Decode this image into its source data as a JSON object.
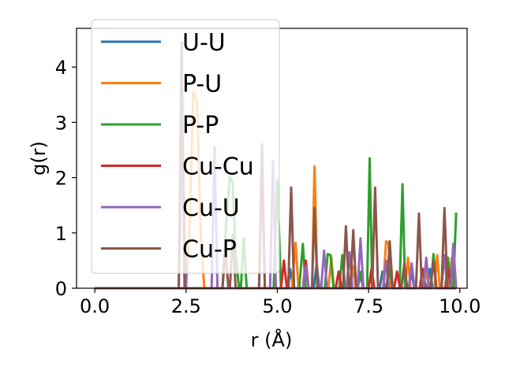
{
  "chart_data": {
    "type": "line",
    "xlabel": "r (Å)",
    "ylabel": "g(r)",
    "xlim": [
      -0.5,
      10.2
    ],
    "ylim": [
      0,
      4.7
    ],
    "xticks": [
      0.0,
      2.5,
      5.0,
      7.5,
      10.0
    ],
    "xtick_labels": [
      "0.0",
      "2.5",
      "5.0",
      "7.5",
      "10.0"
    ],
    "yticks": [
      0,
      1,
      2,
      3,
      4
    ],
    "ytick_labels": [
      "0",
      "1",
      "2",
      "3",
      "4"
    ],
    "grid": false,
    "legend_position": "upper-left",
    "series": [
      {
        "name": "U-U",
        "color": "#1f77b4",
        "points": [
          [
            0,
            0
          ],
          [
            5.3,
            0
          ],
          [
            5.35,
            0.35
          ],
          [
            5.45,
            0
          ],
          [
            6.0,
            0
          ],
          [
            6.08,
            0.45
          ],
          [
            6.15,
            0
          ],
          [
            6.6,
            0
          ],
          [
            6.68,
            0.3
          ],
          [
            6.75,
            0
          ],
          [
            7.2,
            0
          ],
          [
            7.28,
            0.25
          ],
          [
            7.35,
            0
          ],
          [
            7.8,
            0
          ],
          [
            7.88,
            0.3
          ],
          [
            7.95,
            0
          ],
          [
            8.6,
            0
          ],
          [
            8.68,
            0.3
          ],
          [
            8.75,
            0
          ],
          [
            9.1,
            0
          ],
          [
            9.18,
            0.35
          ],
          [
            9.25,
            0
          ],
          [
            9.6,
            0
          ],
          [
            9.68,
            0.4
          ],
          [
            9.75,
            0
          ],
          [
            9.9,
            0
          ]
        ]
      },
      {
        "name": "P-U",
        "color": "#ff7f0e",
        "points": [
          [
            0,
            0
          ],
          [
            2.5,
            0
          ],
          [
            2.6,
            1.2
          ],
          [
            2.7,
            3.55
          ],
          [
            2.8,
            3.4
          ],
          [
            2.9,
            1.0
          ],
          [
            3.0,
            0
          ],
          [
            5.4,
            0
          ],
          [
            5.5,
            0.82
          ],
          [
            5.58,
            0
          ],
          [
            5.95,
            0
          ],
          [
            6.02,
            2.2
          ],
          [
            6.1,
            0
          ],
          [
            6.4,
            0
          ],
          [
            6.48,
            0.55
          ],
          [
            6.55,
            0
          ],
          [
            7.0,
            0
          ],
          [
            7.08,
            0.4
          ],
          [
            7.15,
            0
          ],
          [
            7.5,
            0
          ],
          [
            7.58,
            0.3
          ],
          [
            7.65,
            0
          ],
          [
            7.9,
            0
          ],
          [
            7.98,
            0.85
          ],
          [
            8.05,
            0.8
          ],
          [
            8.12,
            0
          ],
          [
            8.5,
            0
          ],
          [
            8.58,
            0.55
          ],
          [
            8.65,
            0
          ],
          [
            9.0,
            0
          ],
          [
            9.08,
            0.35
          ],
          [
            9.15,
            0
          ],
          [
            9.3,
            0
          ],
          [
            9.38,
            0.6
          ],
          [
            9.45,
            0
          ],
          [
            9.7,
            0
          ],
          [
            9.78,
            0.55
          ],
          [
            9.85,
            0
          ]
        ]
      },
      {
        "name": "P-P",
        "color": "#2ca02c",
        "points": [
          [
            0,
            0
          ],
          [
            3.5,
            0
          ],
          [
            3.6,
            1.2
          ],
          [
            3.7,
            2.02
          ],
          [
            3.78,
            1.9
          ],
          [
            3.86,
            0.6
          ],
          [
            3.95,
            0
          ],
          [
            4.0,
            0
          ],
          [
            4.08,
            0.9
          ],
          [
            4.16,
            0
          ],
          [
            4.9,
            0
          ],
          [
            5.0,
            1.95
          ],
          [
            5.1,
            0
          ],
          [
            5.6,
            0
          ],
          [
            5.7,
            0.8
          ],
          [
            5.78,
            0
          ],
          [
            6.3,
            0
          ],
          [
            6.38,
            0.62
          ],
          [
            6.46,
            0.6
          ],
          [
            6.54,
            0
          ],
          [
            6.7,
            0
          ],
          [
            6.78,
            0.6
          ],
          [
            6.86,
            0
          ],
          [
            7.2,
            0
          ],
          [
            7.28,
            0.3
          ],
          [
            7.36,
            0
          ],
          [
            7.46,
            0
          ],
          [
            7.53,
            2.35
          ],
          [
            7.6,
            0
          ],
          [
            8.0,
            0
          ],
          [
            8.08,
            0.35
          ],
          [
            8.16,
            0
          ],
          [
            8.35,
            0
          ],
          [
            8.43,
            1.88
          ],
          [
            8.5,
            0
          ],
          [
            8.9,
            0
          ],
          [
            8.98,
            0.35
          ],
          [
            9.06,
            0
          ],
          [
            9.2,
            0
          ],
          [
            9.28,
            0.62
          ],
          [
            9.36,
            0
          ],
          [
            9.6,
            0
          ],
          [
            9.68,
            0.55
          ],
          [
            9.76,
            0
          ],
          [
            9.82,
            0
          ],
          [
            9.9,
            1.37
          ]
        ]
      },
      {
        "name": "Cu-Cu",
        "color": "#d62728",
        "points": [
          [
            0,
            0
          ],
          [
            5.1,
            0
          ],
          [
            5.18,
            0.5
          ],
          [
            5.26,
            0
          ],
          [
            5.7,
            0
          ],
          [
            5.78,
            0.5
          ],
          [
            5.86,
            0
          ],
          [
            6.6,
            0
          ],
          [
            6.68,
            0.3
          ],
          [
            6.76,
            0
          ],
          [
            7.5,
            0
          ],
          [
            7.58,
            0.35
          ],
          [
            7.66,
            0
          ],
          [
            8.2,
            0
          ],
          [
            8.28,
            0.3
          ],
          [
            8.36,
            0
          ],
          [
            8.9,
            0
          ],
          [
            8.98,
            0.35
          ],
          [
            9.06,
            0
          ],
          [
            9.6,
            0
          ],
          [
            9.68,
            0.35
          ],
          [
            9.76,
            0
          ],
          [
            9.9,
            0
          ]
        ]
      },
      {
        "name": "Cu-U",
        "color": "#9467bd",
        "points": [
          [
            0,
            0
          ],
          [
            2.3,
            0
          ],
          [
            2.4,
            2.8
          ],
          [
            2.5,
            0
          ],
          [
            3.2,
            0
          ],
          [
            3.28,
            2.55
          ],
          [
            3.36,
            0
          ],
          [
            4.5,
            0
          ],
          [
            4.58,
            2.2
          ],
          [
            4.66,
            0
          ],
          [
            4.8,
            0
          ],
          [
            4.88,
            2.3
          ],
          [
            4.96,
            0
          ],
          [
            5.7,
            0
          ],
          [
            5.78,
            0.4
          ],
          [
            5.86,
            0
          ],
          [
            6.2,
            0
          ],
          [
            6.28,
            0.68
          ],
          [
            6.36,
            0
          ],
          [
            6.9,
            0
          ],
          [
            6.98,
            0.65
          ],
          [
            7.06,
            0
          ],
          [
            7.2,
            0
          ],
          [
            7.28,
            0.9
          ],
          [
            7.36,
            0
          ],
          [
            7.9,
            0
          ],
          [
            7.98,
            0.5
          ],
          [
            8.06,
            0
          ],
          [
            8.6,
            0
          ],
          [
            8.68,
            0.45
          ],
          [
            8.76,
            0
          ],
          [
            9.0,
            0
          ],
          [
            9.08,
            0.55
          ],
          [
            9.16,
            0
          ],
          [
            9.5,
            0
          ],
          [
            9.58,
            0.6
          ],
          [
            9.66,
            0
          ],
          [
            9.75,
            0
          ],
          [
            9.82,
            0.8
          ],
          [
            9.9,
            0
          ]
        ]
      },
      {
        "name": "Cu-P",
        "color": "#8c564b",
        "points": [
          [
            0,
            0
          ],
          [
            2.3,
            0
          ],
          [
            2.38,
            4.45
          ],
          [
            2.46,
            0
          ],
          [
            3.5,
            0
          ],
          [
            3.58,
            0.72
          ],
          [
            3.66,
            0
          ],
          [
            3.7,
            0
          ],
          [
            3.78,
            0.96
          ],
          [
            3.86,
            0
          ],
          [
            4.5,
            0
          ],
          [
            4.58,
            2.6
          ],
          [
            4.66,
            0
          ],
          [
            5.3,
            0
          ],
          [
            5.38,
            1.82
          ],
          [
            5.46,
            0
          ],
          [
            5.95,
            0
          ],
          [
            6.02,
            1.45
          ],
          [
            6.1,
            0
          ],
          [
            6.8,
            0
          ],
          [
            6.88,
            1.12
          ],
          [
            6.96,
            0
          ],
          [
            7.0,
            0
          ],
          [
            7.08,
            1.05
          ],
          [
            7.16,
            0
          ],
          [
            7.6,
            0
          ],
          [
            7.68,
            1.82
          ],
          [
            7.76,
            0
          ],
          [
            8.0,
            0
          ],
          [
            8.08,
            0.85
          ],
          [
            8.16,
            0
          ],
          [
            8.4,
            0
          ],
          [
            8.48,
            0.45
          ],
          [
            8.56,
            0
          ],
          [
            8.8,
            0
          ],
          [
            8.88,
            1.35
          ],
          [
            8.96,
            0
          ],
          [
            9.2,
            0
          ],
          [
            9.28,
            0.5
          ],
          [
            9.36,
            0
          ],
          [
            9.5,
            0
          ],
          [
            9.58,
            1.45
          ],
          [
            9.66,
            0
          ],
          [
            9.9,
            0
          ]
        ]
      }
    ]
  }
}
